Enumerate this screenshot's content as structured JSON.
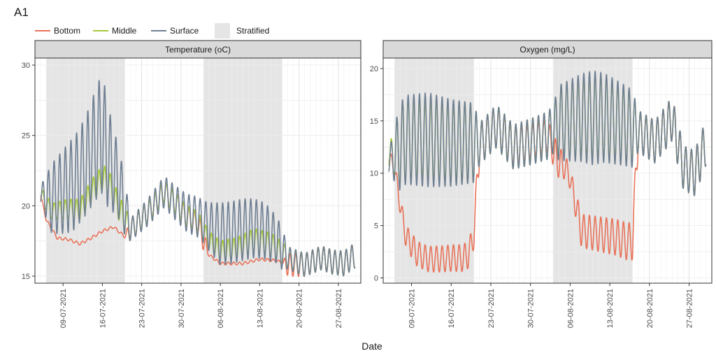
{
  "figure": {
    "panel_label": "A1",
    "xlabel": "Date",
    "legend": {
      "items": [
        {
          "name": "Bottom",
          "color": "#e8735a",
          "kind": "line"
        },
        {
          "name": "Middle",
          "color": "#a6c93a",
          "kind": "line"
        },
        {
          "name": "Surface",
          "color": "#6f7f93",
          "kind": "line"
        },
        {
          "name": "Stratified",
          "color": "#e5e5e5",
          "kind": "box"
        }
      ]
    }
  },
  "chart_data": [
    {
      "type": "line",
      "title": "Temperature (oC)",
      "xlabel": "Date",
      "ylabel": "",
      "xlim": [
        "2021-07-04",
        "2021-08-31"
      ],
      "ylim": [
        14.5,
        30.5
      ],
      "yticks": [
        15,
        20,
        25,
        30
      ],
      "xticks": [
        "09-07-2021",
        "16-07-2021",
        "23-07-2021",
        "30-07-2021",
        "06-08-2021",
        "13-08-2021",
        "20-08-2021",
        "27-08-2021"
      ],
      "grid": true,
      "legend_position": "top",
      "stratified_periods": [
        [
          "2021-07-06",
          "2021-07-20"
        ],
        [
          "2021-08-03",
          "2021-08-17"
        ]
      ],
      "series": [
        {
          "name": "Bottom",
          "color": "#e8735a",
          "mean": [
            [
              "2021-07-05",
              20.8
            ],
            [
              "2021-07-06",
              19.0
            ],
            [
              "2021-07-08",
              17.7
            ],
            [
              "2021-07-10",
              17.6
            ],
            [
              "2021-07-12",
              17.3
            ],
            [
              "2021-07-14",
              17.7
            ],
            [
              "2021-07-16",
              18.2
            ],
            [
              "2021-07-18",
              18.5
            ],
            [
              "2021-07-20",
              17.8
            ],
            [
              "2021-07-21",
              18.3
            ],
            [
              "2021-07-24",
              19.5
            ],
            [
              "2021-07-27",
              21.0
            ],
            [
              "2021-07-29",
              20.2
            ],
            [
              "2021-07-31",
              19.2
            ],
            [
              "2021-08-02",
              18.7
            ],
            [
              "2021-08-04",
              16.5
            ],
            [
              "2021-08-06",
              15.9
            ],
            [
              "2021-08-08",
              15.9
            ],
            [
              "2021-08-10",
              15.9
            ],
            [
              "2021-08-13",
              16.2
            ],
            [
              "2021-08-16",
              16.1
            ],
            [
              "2021-08-18",
              15.8
            ],
            [
              "2021-08-21",
              15.8
            ],
            [
              "2021-08-24",
              16.3
            ],
            [
              "2021-08-26",
              16.0
            ],
            [
              "2021-08-28",
              15.9
            ],
            [
              "2021-08-30",
              16.5
            ]
          ],
          "amplitude": [
            [
              "2021-07-05",
              0.1
            ],
            [
              "2021-07-20",
              0.1
            ],
            [
              "2021-07-21",
              0.8
            ],
            [
              "2021-08-03",
              0.8
            ],
            [
              "2021-08-04",
              0.1
            ],
            [
              "2021-08-17",
              0.1
            ],
            [
              "2021-08-18",
              0.8
            ],
            [
              "2021-08-30",
              0.9
            ]
          ]
        },
        {
          "name": "Middle",
          "color": "#a6c93a",
          "mean": [
            [
              "2021-07-05",
              20.8
            ],
            [
              "2021-07-07",
              19.6
            ],
            [
              "2021-07-10",
              19.8
            ],
            [
              "2021-07-12",
              19.7
            ],
            [
              "2021-07-14",
              21.0
            ],
            [
              "2021-07-16",
              22.0
            ],
            [
              "2021-07-17",
              21.8
            ],
            [
              "2021-07-19",
              19.8
            ],
            [
              "2021-07-21",
              18.3
            ],
            [
              "2021-07-24",
              19.5
            ],
            [
              "2021-07-27",
              21.0
            ],
            [
              "2021-07-29",
              20.2
            ],
            [
              "2021-07-31",
              19.3
            ],
            [
              "2021-08-02",
              18.9
            ],
            [
              "2021-08-04",
              17.5
            ],
            [
              "2021-08-06",
              16.8
            ],
            [
              "2021-08-09",
              17.0
            ],
            [
              "2021-08-12",
              17.6
            ],
            [
              "2021-08-15",
              17.3
            ],
            [
              "2021-08-18",
              16.3
            ],
            [
              "2021-08-21",
              15.8
            ],
            [
              "2021-08-24",
              16.3
            ],
            [
              "2021-08-26",
              16.0
            ],
            [
              "2021-08-28",
              15.9
            ],
            [
              "2021-08-30",
              16.5
            ]
          ],
          "amplitude": [
            [
              "2021-07-05",
              0.5
            ],
            [
              "2021-07-10",
              0.7
            ],
            [
              "2021-07-16",
              0.9
            ],
            [
              "2021-07-20",
              0.9
            ],
            [
              "2021-07-21",
              0.8
            ],
            [
              "2021-08-04",
              0.7
            ],
            [
              "2021-08-12",
              0.8
            ],
            [
              "2021-08-17",
              0.8
            ],
            [
              "2021-08-30",
              0.9
            ]
          ]
        },
        {
          "name": "Surface",
          "color": "#6f7f93",
          "mean": [
            [
              "2021-07-05",
              20.8
            ],
            [
              "2021-07-07",
              20.5
            ],
            [
              "2021-07-09",
              21.0
            ],
            [
              "2021-07-11",
              21.6
            ],
            [
              "2021-07-13",
              22.8
            ],
            [
              "2021-07-15",
              24.5
            ],
            [
              "2021-07-16",
              25.2
            ],
            [
              "2021-07-17",
              23.5
            ],
            [
              "2021-07-19",
              21.5
            ],
            [
              "2021-07-21",
              18.3
            ],
            [
              "2021-07-24",
              19.5
            ],
            [
              "2021-07-27",
              21.0
            ],
            [
              "2021-07-29",
              20.2
            ],
            [
              "2021-07-31",
              19.5
            ],
            [
              "2021-08-02",
              19.2
            ],
            [
              "2021-08-04",
              18.5
            ],
            [
              "2021-08-06",
              18.0
            ],
            [
              "2021-08-08",
              18.1
            ],
            [
              "2021-08-10",
              18.3
            ],
            [
              "2021-08-12",
              18.4
            ],
            [
              "2021-08-14",
              18.2
            ],
            [
              "2021-08-16",
              17.6
            ],
            [
              "2021-08-18",
              16.3
            ],
            [
              "2021-08-21",
              15.8
            ],
            [
              "2021-08-24",
              16.3
            ],
            [
              "2021-08-26",
              16.0
            ],
            [
              "2021-08-28",
              15.9
            ],
            [
              "2021-08-30",
              16.5
            ]
          ],
          "amplitude": [
            [
              "2021-07-05",
              0.6
            ],
            [
              "2021-07-07",
              2.5
            ],
            [
              "2021-07-10",
              3.2
            ],
            [
              "2021-07-13",
              3.5
            ],
            [
              "2021-07-15",
              4.0
            ],
            [
              "2021-07-16",
              4.3
            ],
            [
              "2021-07-18",
              3.0
            ],
            [
              "2021-07-20",
              2.0
            ],
            [
              "2021-07-21",
              0.8
            ],
            [
              "2021-08-03",
              1.5
            ],
            [
              "2021-08-06",
              2.2
            ],
            [
              "2021-08-10",
              2.2
            ],
            [
              "2021-08-14",
              2.0
            ],
            [
              "2021-08-17",
              1.5
            ],
            [
              "2021-08-18",
              0.8
            ],
            [
              "2021-08-30",
              0.9
            ]
          ]
        }
      ]
    },
    {
      "type": "line",
      "title": "Oxygen (mg/L)",
      "xlabel": "Date",
      "ylabel": "",
      "xlim": [
        "2021-07-04",
        "2021-08-31"
      ],
      "ylim": [
        -0.5,
        21
      ],
      "yticks": [
        0,
        5,
        10,
        15,
        20
      ],
      "xticks": [
        "09-07-2021",
        "16-07-2021",
        "23-07-2021",
        "30-07-2021",
        "06-08-2021",
        "13-08-2021",
        "20-08-2021",
        "27-08-2021"
      ],
      "grid": true,
      "legend_position": "top",
      "stratified_periods": [
        [
          "2021-07-06",
          "2021-07-20"
        ],
        [
          "2021-08-03",
          "2021-08-17"
        ]
      ],
      "series": [
        {
          "name": "Bottom",
          "color": "#e8735a",
          "mean": [
            [
              "2021-07-05",
              11.6
            ],
            [
              "2021-07-06",
              10.5
            ],
            [
              "2021-07-07",
              7.0
            ],
            [
              "2021-07-08",
              4.0
            ],
            [
              "2021-07-10",
              2.3
            ],
            [
              "2021-07-12",
              1.8
            ],
            [
              "2021-07-14",
              1.8
            ],
            [
              "2021-07-16",
              1.9
            ],
            [
              "2021-07-18",
              1.9
            ],
            [
              "2021-07-19",
              2.2
            ],
            [
              "2021-07-20",
              4.0
            ],
            [
              "2021-07-21",
              12.8
            ],
            [
              "2021-07-24",
              14.5
            ],
            [
              "2021-07-27",
              12.5
            ],
            [
              "2021-07-30",
              13.0
            ],
            [
              "2021-08-02",
              13.6
            ],
            [
              "2021-08-04",
              11.0
            ],
            [
              "2021-08-05",
              10.7
            ],
            [
              "2021-08-06",
              9.5
            ],
            [
              "2021-08-07",
              7.0
            ],
            [
              "2021-08-08",
              4.5
            ],
            [
              "2021-08-10",
              4.3
            ],
            [
              "2021-08-12",
              4.1
            ],
            [
              "2021-08-14",
              3.9
            ],
            [
              "2021-08-16",
              3.5
            ],
            [
              "2021-08-17",
              3.5
            ],
            [
              "2021-08-18",
              14.0
            ],
            [
              "2021-08-21",
              13.0
            ],
            [
              "2021-08-24",
              15.2
            ],
            [
              "2021-08-26",
              10.5
            ],
            [
              "2021-08-28",
              10.0
            ],
            [
              "2021-08-30",
              13.0
            ]
          ],
          "amplitude": [
            [
              "2021-07-05",
              0.6
            ],
            [
              "2021-07-09",
              1.2
            ],
            [
              "2021-07-19",
              1.3
            ],
            [
              "2021-07-20",
              1.2
            ],
            [
              "2021-07-21",
              2.0
            ],
            [
              "2021-08-04",
              1.5
            ],
            [
              "2021-08-06",
              1.0
            ],
            [
              "2021-08-08",
              1.6
            ],
            [
              "2021-08-17",
              1.8
            ],
            [
              "2021-08-18",
              2.0
            ],
            [
              "2021-08-30",
              2.2
            ]
          ]
        },
        {
          "name": "Middle",
          "color": "#a6c93a",
          "mean": [
            [
              "2021-07-05",
              11.6
            ],
            [
              "2021-07-06",
              11.8
            ],
            [
              "2021-07-08",
              13.2
            ],
            [
              "2021-07-12",
              13.2
            ],
            [
              "2021-07-16",
              12.9
            ],
            [
              "2021-07-18",
              12.9
            ],
            [
              "2021-07-20",
              12.9
            ],
            [
              "2021-07-21",
              12.8
            ],
            [
              "2021-07-24",
              14.5
            ],
            [
              "2021-07-27",
              12.5
            ],
            [
              "2021-07-30",
              13.0
            ],
            [
              "2021-08-02",
              13.6
            ],
            [
              "2021-08-04",
              14.8
            ],
            [
              "2021-08-08",
              15.3
            ],
            [
              "2021-08-12",
              15.3
            ],
            [
              "2021-08-16",
              14.5
            ],
            [
              "2021-08-18",
              14.0
            ],
            [
              "2021-08-21",
              13.0
            ],
            [
              "2021-08-24",
              15.2
            ],
            [
              "2021-08-26",
              10.5
            ],
            [
              "2021-08-28",
              10.0
            ],
            [
              "2021-08-30",
              13.0
            ]
          ],
          "amplitude": [
            [
              "2021-07-05",
              1.0
            ],
            [
              "2021-07-07",
              4.0
            ],
            [
              "2021-07-20",
              3.8
            ],
            [
              "2021-07-21",
              2.0
            ],
            [
              "2021-08-03",
              2.3
            ],
            [
              "2021-08-04",
              3.5
            ],
            [
              "2021-08-10",
              4.2
            ],
            [
              "2021-08-17",
              3.5
            ],
            [
              "2021-08-18",
              2.0
            ],
            [
              "2021-08-30",
              2.2
            ]
          ]
        },
        {
          "name": "Surface",
          "color": "#6f7f93",
          "mean": [
            [
              "2021-07-05",
              11.0
            ],
            [
              "2021-07-06",
              11.8
            ],
            [
              "2021-07-08",
              13.2
            ],
            [
              "2021-07-12",
              13.2
            ],
            [
              "2021-07-16",
              12.9
            ],
            [
              "2021-07-18",
              12.9
            ],
            [
              "2021-07-20",
              12.9
            ],
            [
              "2021-07-21",
              12.8
            ],
            [
              "2021-07-24",
              14.5
            ],
            [
              "2021-07-27",
              12.5
            ],
            [
              "2021-07-30",
              13.0
            ],
            [
              "2021-08-02",
              13.6
            ],
            [
              "2021-08-04",
              14.8
            ],
            [
              "2021-08-08",
              15.3
            ],
            [
              "2021-08-12",
              15.3
            ],
            [
              "2021-08-16",
              14.5
            ],
            [
              "2021-08-18",
              14.0
            ],
            [
              "2021-08-21",
              13.0
            ],
            [
              "2021-08-24",
              15.2
            ],
            [
              "2021-08-26",
              10.5
            ],
            [
              "2021-08-28",
              10.0
            ],
            [
              "2021-08-30",
              13.0
            ]
          ],
          "amplitude": [
            [
              "2021-07-05",
              1.0
            ],
            [
              "2021-07-07",
              4.2
            ],
            [
              "2021-07-12",
              4.5
            ],
            [
              "2021-07-20",
              3.8
            ],
            [
              "2021-07-21",
              2.0
            ],
            [
              "2021-08-03",
              2.3
            ],
            [
              "2021-08-04",
              3.6
            ],
            [
              "2021-08-10",
              4.5
            ],
            [
              "2021-08-17",
              3.7
            ],
            [
              "2021-08-18",
              2.0
            ],
            [
              "2021-08-30",
              2.2
            ]
          ]
        }
      ]
    }
  ]
}
